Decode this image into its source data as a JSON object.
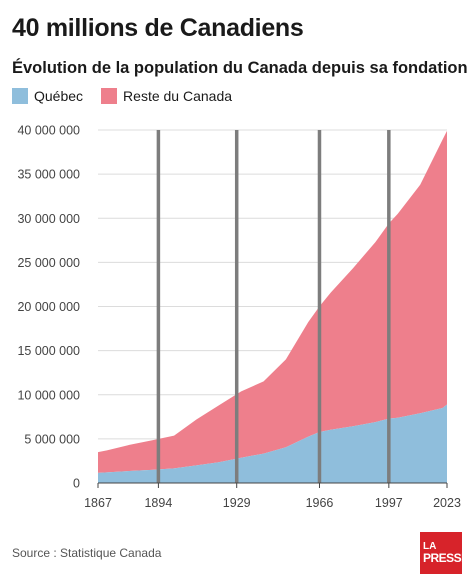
{
  "header": {
    "title": "40 millions de Canadiens",
    "subtitle": "Évolution de la population du Canada depuis sa fondation"
  },
  "legend": [
    {
      "label": "Québec",
      "color": "#8fbedc"
    },
    {
      "label": "Reste du Canada",
      "color": "#ee7f8c"
    }
  ],
  "footer": {
    "source": "Source : Statistique Canada",
    "logo_top": "LA",
    "logo_bottom": "PRESSE",
    "logo_color": "#d7232a"
  },
  "chart_data": {
    "type": "area",
    "stacked": true,
    "xlim": [
      1867,
      2023
    ],
    "ylim": [
      0,
      40000000
    ],
    "x_ticks": [
      1867,
      1894,
      1929,
      1966,
      1997,
      2023
    ],
    "x_tick_labels": [
      "1867",
      "1894",
      "1929",
      "1966",
      "1997",
      "2023"
    ],
    "y_ticks": [
      0,
      5000000,
      10000000,
      15000000,
      20000000,
      25000000,
      30000000,
      35000000,
      40000000
    ],
    "y_tick_labels": [
      "0",
      "5 000 000",
      "10 000 000",
      "15 000 000",
      "20 000 000",
      "25 000 000",
      "30 000 000",
      "35 000 000",
      "40 000 000"
    ],
    "marker_lines": [
      1894,
      1929,
      1966,
      1997
    ],
    "grid": "horizontal",
    "series": [
      {
        "name": "Québec",
        "color": "#8fbedc",
        "x": [
          1867,
          1871,
          1881,
          1891,
          1901,
          1911,
          1921,
          1931,
          1941,
          1951,
          1961,
          1966,
          1971,
          1981,
          1991,
          1997,
          2001,
          2011,
          2021,
          2023
        ],
        "values": [
          1150000,
          1200000,
          1360000,
          1490000,
          1650000,
          2000000,
          2360000,
          2870000,
          3330000,
          4060000,
          5260000,
          5780000,
          6030000,
          6440000,
          6900000,
          7300000,
          7400000,
          7900000,
          8500000,
          8900000
        ]
      },
      {
        "name": "Reste du Canada",
        "color": "#ee7f8c",
        "x": [
          1867,
          1871,
          1881,
          1891,
          1901,
          1911,
          1921,
          1931,
          1941,
          1951,
          1961,
          1966,
          1971,
          1981,
          1991,
          1997,
          2001,
          2011,
          2021,
          2023
        ],
        "values": [
          2350000,
          2490000,
          2960000,
          3340000,
          3720000,
          5200000,
          6430000,
          7510000,
          8180000,
          9950000,
          12980000,
          14230000,
          15540000,
          17900000,
          20400000,
          22100000,
          23100000,
          25900000,
          30400000,
          31000000
        ]
      }
    ]
  }
}
